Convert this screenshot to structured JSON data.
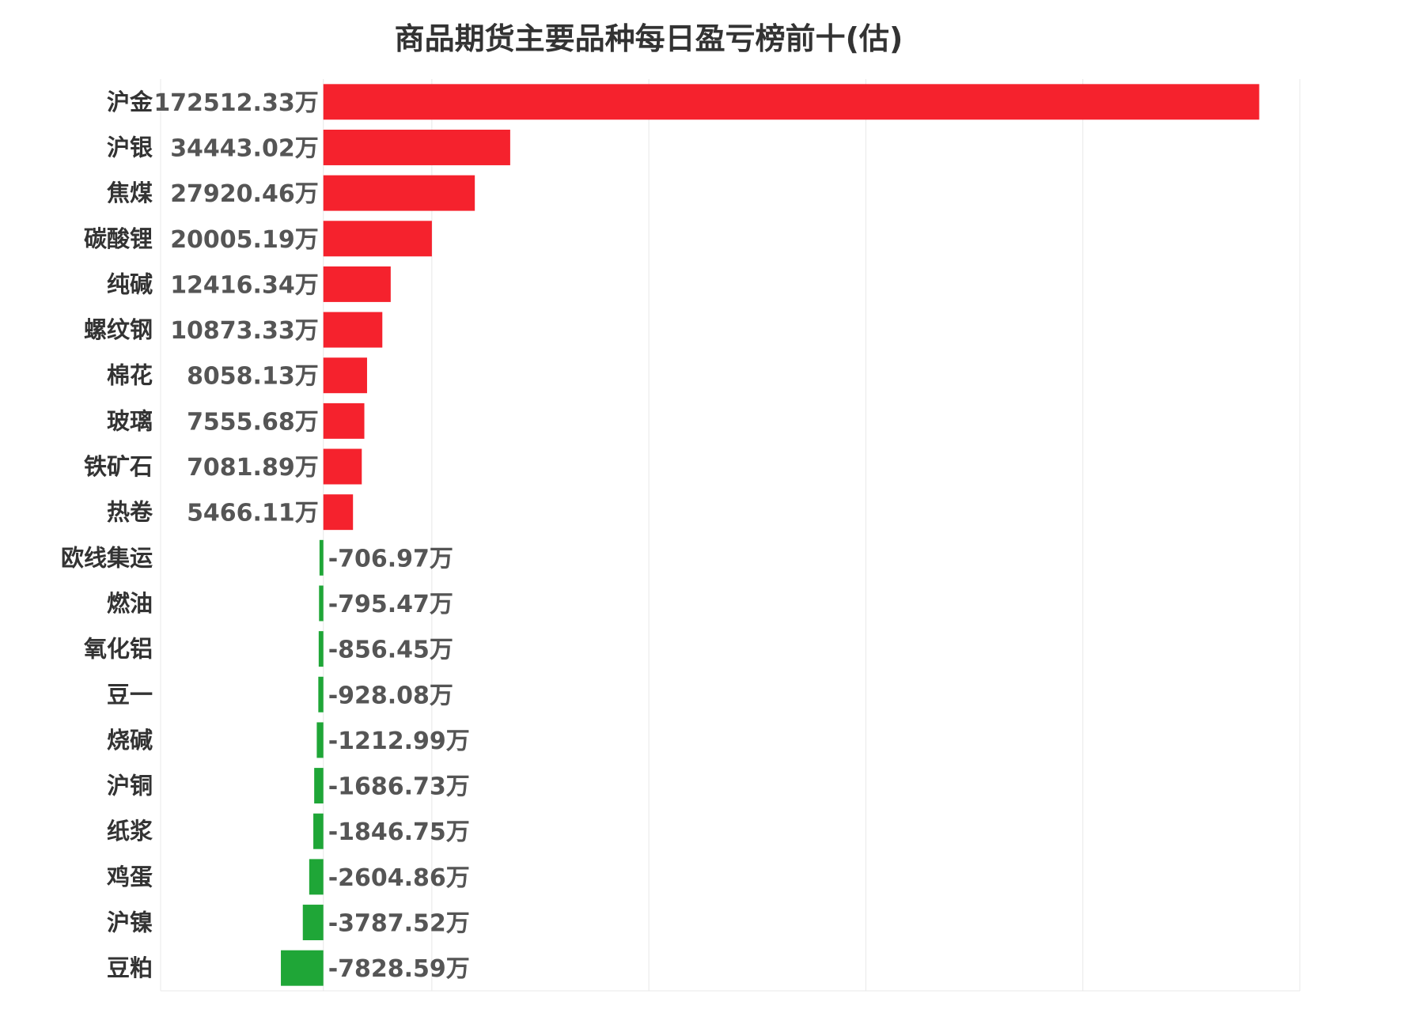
{
  "chart_data": {
    "type": "bar",
    "orientation": "horizontal",
    "title": "商品期货主要品种每日盈亏榜前十(估)",
    "unit": "万",
    "categories": [
      "沪金",
      "沪银",
      "焦煤",
      "碳酸锂",
      "纯碱",
      "螺纹钢",
      "棉花",
      "玻璃",
      "铁矿石",
      "热卷",
      "欧线集运",
      "燃油",
      "氧化铝",
      "豆一",
      "烧碱",
      "沪铜",
      "纸浆",
      "鸡蛋",
      "沪镍",
      "豆粕"
    ],
    "values": [
      172512.33,
      34443.02,
      27920.46,
      20005.19,
      12416.34,
      10873.33,
      8058.13,
      7555.68,
      7081.89,
      5466.11,
      -706.97,
      -795.47,
      -856.45,
      -928.08,
      -1212.99,
      -1686.73,
      -1846.75,
      -2604.86,
      -3787.52,
      -7828.59
    ],
    "value_labels": [
      "172512.33万",
      "34443.02万",
      "27920.46万",
      "20005.19万",
      "12416.34万",
      "10873.33万",
      "8058.13万",
      "7555.68万",
      "7081.89万",
      "5466.11万",
      "-706.97万",
      "-795.47万",
      "-856.45万",
      "-928.08万",
      "-1212.99万",
      "-1686.73万",
      "-1846.75万",
      "-2604.86万",
      "-3787.52万",
      "-7828.59万"
    ],
    "xlim": [
      -30000,
      180000
    ],
    "grid": true,
    "colors": {
      "positive": "#f5222d",
      "negative": "#1fa637",
      "grid": "#e8e8e8",
      "label": "#333333",
      "value": "#555555"
    }
  }
}
